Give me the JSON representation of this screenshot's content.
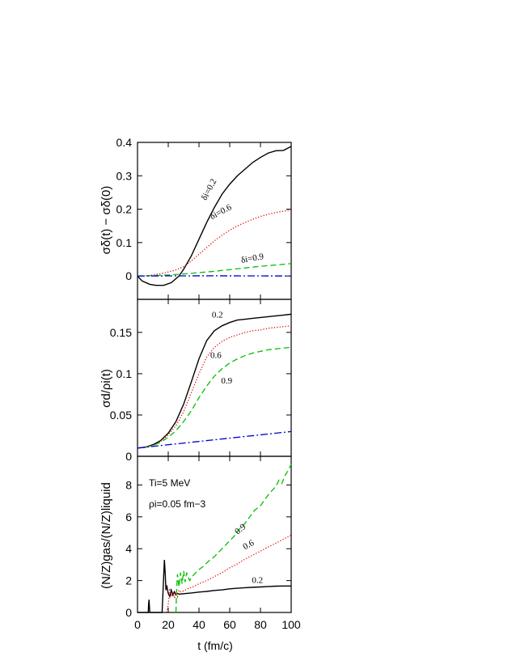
{
  "colors": {
    "delta_0_2": "#000000",
    "delta_0_6": "#e00000",
    "delta_0_9": "#00c000",
    "reference": "#0000d0"
  },
  "x_axis": {
    "label": "t (fm/c)",
    "range": [
      0,
      100
    ],
    "ticks": [
      "0",
      "20",
      "40",
      "60",
      "80",
      "100"
    ]
  },
  "chart_data": [
    {
      "type": "line",
      "panel": "top",
      "ylabel": "σδ(t) − σδ(0)",
      "ylim": [
        -0.07,
        0.4
      ],
      "yticks": [
        "0",
        "0.1",
        "0.2",
        "0.3",
        "0.4"
      ],
      "series": [
        {
          "name": "δi=0.2",
          "style": "solid",
          "x": [
            0,
            3,
            8,
            12,
            17,
            22,
            27,
            30,
            35,
            40,
            45,
            50,
            55,
            60,
            65,
            70,
            75,
            80,
            85,
            90,
            95,
            100
          ],
          "y": [
            0.0,
            -0.015,
            -0.025,
            -0.028,
            -0.028,
            -0.02,
            0.0,
            0.02,
            0.06,
            0.11,
            0.16,
            0.205,
            0.245,
            0.275,
            0.3,
            0.32,
            0.34,
            0.355,
            0.368,
            0.375,
            0.376,
            0.388
          ]
        },
        {
          "name": "δi=0.6",
          "style": "dotted",
          "x": [
            0,
            5,
            10,
            15,
            20,
            25,
            30,
            35,
            40,
            45,
            50,
            55,
            60,
            65,
            70,
            75,
            80,
            85,
            90,
            95,
            100
          ],
          "y": [
            0.0,
            0.0,
            0.003,
            0.007,
            0.012,
            0.018,
            0.028,
            0.045,
            0.065,
            0.085,
            0.105,
            0.122,
            0.137,
            0.15,
            0.16,
            0.17,
            0.178,
            0.185,
            0.19,
            0.194,
            0.198
          ]
        },
        {
          "name": "δi=0.9",
          "style": "dashed",
          "x": [
            0,
            10,
            20,
            30,
            40,
            50,
            60,
            70,
            80,
            90,
            100
          ],
          "y": [
            0.0,
            0.001,
            0.003,
            0.006,
            0.01,
            0.014,
            0.019,
            0.024,
            0.029,
            0.033,
            0.037
          ]
        },
        {
          "style": "dash-dot",
          "x": [
            0,
            50,
            100
          ],
          "y": [
            0.0,
            0.0005,
            0.0
          ]
        }
      ],
      "labels": [
        {
          "text": "δi=0.2",
          "series": "δi=0.2"
        },
        {
          "text": "δi=0.6",
          "series": "δi=0.6"
        },
        {
          "text": "δi=0.9",
          "series": "δi=0.9"
        }
      ]
    },
    {
      "type": "line",
      "panel": "middle",
      "ylabel": "σd/ρi(t)",
      "ylim": [
        0,
        0.19
      ],
      "yticks": [
        "0",
        "0.05",
        "0.1",
        "0.15"
      ],
      "series": [
        {
          "style": "solid",
          "x": [
            0,
            5,
            10,
            15,
            20,
            25,
            30,
            35,
            40,
            45,
            50,
            55,
            60,
            65,
            70,
            75,
            80,
            85,
            90,
            95,
            100
          ],
          "y": [
            0.01,
            0.011,
            0.014,
            0.019,
            0.028,
            0.042,
            0.063,
            0.09,
            0.118,
            0.14,
            0.152,
            0.158,
            0.162,
            0.165,
            0.166,
            0.167,
            0.168,
            0.169,
            0.17,
            0.171,
            0.172
          ]
        },
        {
          "style": "dotted",
          "x": [
            0,
            5,
            10,
            15,
            20,
            25,
            30,
            35,
            40,
            45,
            50,
            55,
            60,
            65,
            70,
            75,
            80,
            85,
            90,
            95,
            100
          ],
          "y": [
            0.01,
            0.011,
            0.013,
            0.018,
            0.026,
            0.037,
            0.054,
            0.077,
            0.1,
            0.12,
            0.132,
            0.139,
            0.144,
            0.147,
            0.15,
            0.152,
            0.153,
            0.155,
            0.156,
            0.157,
            0.158
          ]
        },
        {
          "style": "dashed",
          "x": [
            0,
            5,
            10,
            15,
            20,
            25,
            30,
            35,
            40,
            45,
            50,
            55,
            60,
            65,
            70,
            75,
            80,
            85,
            90,
            95,
            100
          ],
          "y": [
            0.01,
            0.011,
            0.013,
            0.017,
            0.023,
            0.031,
            0.042,
            0.055,
            0.071,
            0.085,
            0.097,
            0.106,
            0.113,
            0.118,
            0.122,
            0.125,
            0.127,
            0.129,
            0.13,
            0.131,
            0.132
          ]
        },
        {
          "style": "dash-dot",
          "x": [
            0,
            100
          ],
          "y": [
            0.01,
            0.03
          ]
        }
      ],
      "labels": [
        {
          "text": "0.2"
        },
        {
          "text": "0.6"
        },
        {
          "text": "0.9"
        }
      ]
    },
    {
      "type": "line",
      "panel": "bottom",
      "ylabel": "(N/Z)gas/(N/Z)liquid",
      "ylim": [
        0,
        9.8
      ],
      "yticks": [
        "0",
        "2",
        "4",
        "6",
        "8"
      ],
      "annotations": [
        "Ti=5 MeV",
        "ρi=0.05 fm−3"
      ],
      "series": [
        {
          "style": "solid",
          "x": [
            0,
            7,
            7.2,
            7.5,
            7.8,
            8,
            16,
            17,
            17.5,
            18,
            18.5,
            19,
            20,
            21,
            22,
            23,
            24,
            25,
            26,
            27,
            30,
            35,
            40,
            45,
            50,
            55,
            60,
            65,
            70,
            75,
            80,
            85,
            90,
            95,
            100
          ],
          "y": [
            0,
            0,
            0.5,
            0.8,
            0.3,
            0,
            0,
            2.2,
            3.3,
            2.5,
            1.4,
            1.7,
            1.2,
            1.0,
            1.4,
            1.1,
            1.3,
            1.1,
            1.2,
            1.15,
            1.18,
            1.22,
            1.28,
            1.32,
            1.38,
            1.42,
            1.48,
            1.52,
            1.55,
            1.58,
            1.6,
            1.63,
            1.65,
            1.66,
            1.66
          ]
        },
        {
          "style": "dotted",
          "x": [
            19,
            20,
            21,
            22,
            23,
            24,
            25,
            26,
            27,
            28,
            30,
            33,
            36,
            40,
            45,
            50,
            55,
            60,
            65,
            70,
            75,
            80,
            85,
            90,
            95,
            100
          ],
          "y": [
            0,
            0.5,
            1.5,
            1.0,
            1.3,
            0.9,
            1.2,
            1.0,
            1.4,
            1.3,
            1.35,
            1.5,
            1.6,
            1.8,
            2.0,
            2.25,
            2.5,
            2.8,
            3.05,
            3.35,
            3.6,
            3.85,
            4.1,
            4.35,
            4.6,
            4.85
          ]
        },
        {
          "style": "dashed",
          "x": [
            25,
            25.5,
            26,
            27,
            28,
            29,
            30,
            31,
            32,
            33,
            34,
            35,
            37,
            40,
            43,
            46,
            50,
            53,
            56,
            60,
            63,
            66,
            70,
            73,
            76,
            80,
            83,
            86,
            90,
            92,
            94,
            96,
            98,
            100
          ],
          "y": [
            0,
            1.5,
            2.4,
            1.6,
            2.5,
            1.8,
            2.6,
            1.9,
            2.5,
            2.2,
            2.0,
            2.2,
            2.4,
            2.7,
            2.9,
            3.2,
            3.5,
            3.8,
            4.1,
            4.5,
            4.8,
            5.2,
            5.6,
            6.0,
            6.4,
            6.7,
            7.1,
            7.5,
            7.9,
            8.3,
            8.1,
            8.6,
            8.9,
            9.3
          ]
        }
      ],
      "labels": [
        {
          "text": "0.9"
        },
        {
          "text": "0.6"
        },
        {
          "text": "0.2"
        }
      ]
    }
  ]
}
